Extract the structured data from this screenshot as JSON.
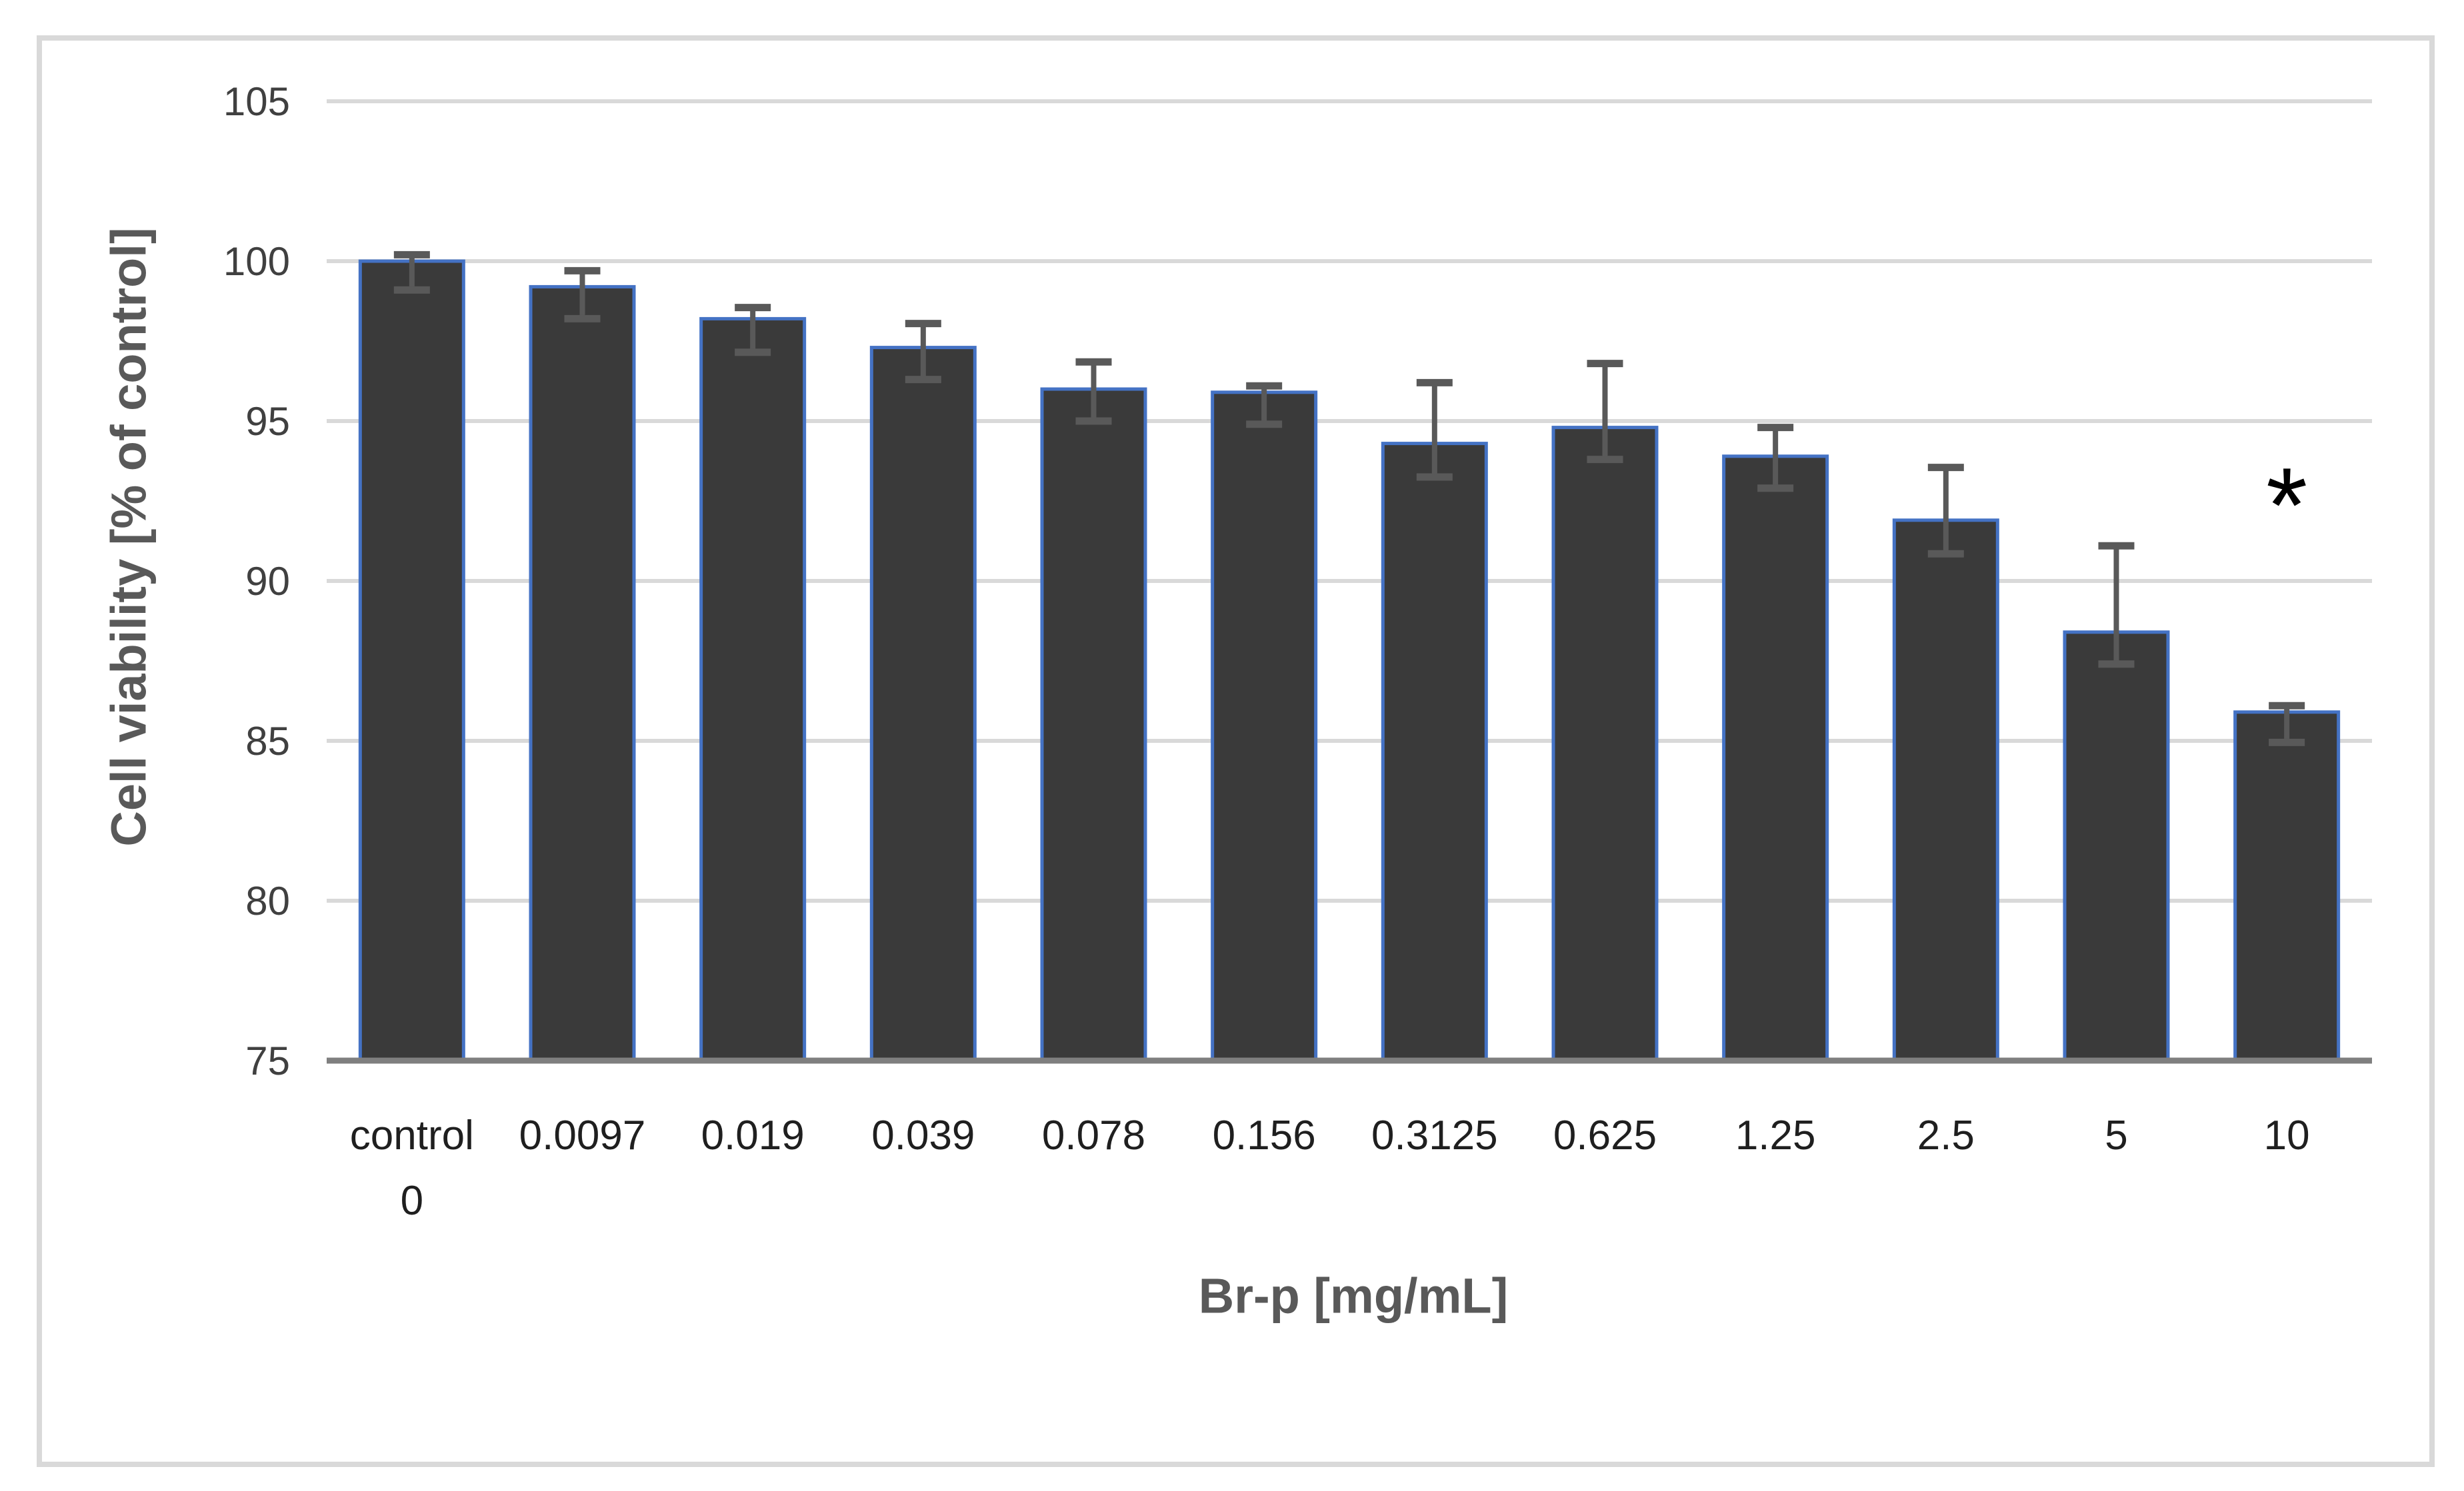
{
  "chart_data": {
    "type": "bar",
    "title": "",
    "xlabel": "Br-p [mg/mL]",
    "ylabel": "Cell viability [% of control]",
    "categories": [
      [
        "control",
        "0"
      ],
      [
        "0.0097"
      ],
      [
        "0.019"
      ],
      [
        "0.039"
      ],
      [
        "0.078"
      ],
      [
        "0.156"
      ],
      [
        "0.3125"
      ],
      [
        "0.625"
      ],
      [
        "1.25"
      ],
      [
        "2.5"
      ],
      [
        "5"
      ],
      [
        "10"
      ]
    ],
    "values": [
      100.0,
      99.2,
      98.2,
      97.3,
      96.0,
      95.9,
      94.3,
      94.8,
      93.9,
      91.9,
      88.4,
      85.9
    ],
    "error_plus": [
      0.2,
      0.5,
      0.35,
      0.75,
      0.85,
      0.2,
      1.9,
      2.0,
      0.9,
      1.65,
      2.7,
      0.2
    ],
    "error_minus": [
      0.9,
      1.0,
      1.05,
      1.0,
      1.0,
      1.0,
      1.05,
      1.0,
      1.0,
      1.05,
      1.0,
      0.95
    ],
    "ylim": [
      75,
      105
    ],
    "yticks": [
      75,
      80,
      85,
      90,
      95,
      100,
      105
    ],
    "grid": true,
    "legend": false,
    "annotation": {
      "text": "*",
      "category_index": 11,
      "y_value": 92.5
    },
    "colors": {
      "bar_fill": "#3a3a3a",
      "bar_outline": "#4472c4",
      "error_bar": "#595959",
      "gridline": "#d9d9d9",
      "frame_border": "#d9d9d9",
      "x_axis_line": "#7f7f7f",
      "y_tick_text": "#404040",
      "x_tick_text": "#1f1f1f",
      "axis_title_text": "#595959",
      "annotation_text": "#000000",
      "background": "#ffffff"
    }
  }
}
